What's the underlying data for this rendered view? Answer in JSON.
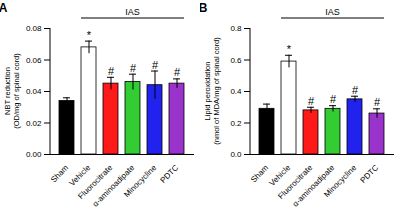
{
  "chart_data": [
    {
      "type": "bar",
      "title": "A",
      "y_label": "NBT reduction (OD/mg of spinal cord)",
      "categories": [
        "Sham",
        "Vehicle",
        "Fluorocitrate",
        "α-aminoadipate",
        "Minocycline",
        "PDTC"
      ],
      "values": [
        0.034,
        0.068,
        0.045,
        0.046,
        0.044,
        0.045
      ],
      "errors": [
        0.002,
        0.004,
        0.004,
        0.005,
        0.009,
        0.003
      ],
      "annotations": [
        null,
        "*",
        "#",
        "#",
        "#",
        "#"
      ],
      "group": {
        "label": "IAS",
        "categories": [
          "Vehicle",
          "PDTC"
        ]
      },
      "colors": [
        "#000000",
        "#ffffff",
        "#ff1a1a",
        "#33cc33",
        "#2222ee",
        "#9933cc"
      ],
      "ylim": [
        0,
        0.08
      ],
      "yticks": [
        {
          "value": 0,
          "label": "0.00"
        },
        {
          "value": 0.02,
          "label": "0.02"
        },
        {
          "value": 0.04,
          "label": "0.04"
        },
        {
          "value": 0.06,
          "label": "0.06"
        },
        {
          "value": 0.08,
          "label": "0.08"
        }
      ],
      "grid": false
    },
    {
      "type": "bar",
      "title": "B",
      "y_label": "Lipid peroxidation (nmol of MDA/mg of spinal cord)",
      "categories": [
        "Sham",
        "Vehicle",
        "Fluorocitrate",
        "α-aminoadipate",
        "Minocycline",
        "PDTC"
      ],
      "values": [
        0.29,
        0.59,
        0.28,
        0.29,
        0.35,
        0.26
      ],
      "errors": [
        0.03,
        0.04,
        0.02,
        0.02,
        0.02,
        0.03
      ],
      "annotations": [
        null,
        "*",
        "#",
        "#",
        "#",
        "#"
      ],
      "group": {
        "label": "IAS",
        "categories": [
          "Vehicle",
          "PDTC"
        ]
      },
      "colors": [
        "#000000",
        "#ffffff",
        "#ff1a1a",
        "#33cc33",
        "#2222ee",
        "#9933cc"
      ],
      "ylim": [
        0,
        0.8
      ],
      "yticks": [
        {
          "value": 0,
          "label": "0.0"
        },
        {
          "value": 0.2,
          "label": "0.2"
        },
        {
          "value": 0.4,
          "label": "0.4"
        },
        {
          "value": 0.6,
          "label": "0.6"
        },
        {
          "value": 0.8,
          "label": "0.8"
        }
      ],
      "grid": false
    }
  ]
}
